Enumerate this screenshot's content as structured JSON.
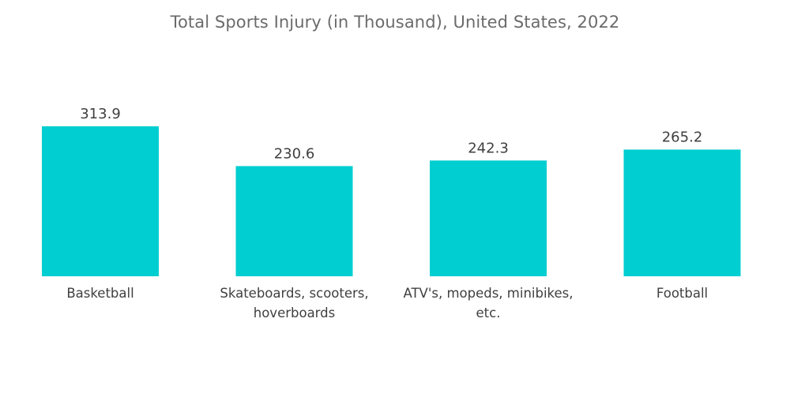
{
  "chart_data": {
    "type": "bar",
    "title": "Total Sports Injury (in Thousand), United States, 2022",
    "xlabel": "",
    "ylabel": "",
    "categories": [
      [
        "Basketball"
      ],
      [
        "Skateboards, scooters,",
        "hoverboards"
      ],
      [
        "ATV's, mopeds, minibikes,",
        "etc."
      ],
      [
        "Football"
      ]
    ],
    "values": [
      313.9,
      230.6,
      242.3,
      265.2
    ],
    "value_labels": [
      "313.9",
      "230.6",
      "242.3",
      "265.2"
    ],
    "ylim": [
      0,
      313.9
    ],
    "grid": false,
    "legend": "none",
    "bar_color": "#00CED1"
  }
}
